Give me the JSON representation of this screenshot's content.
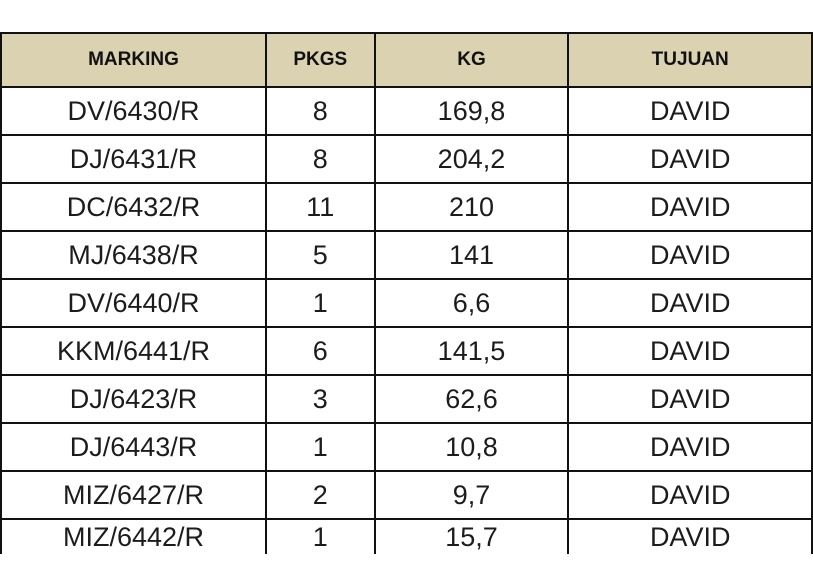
{
  "table": {
    "headers": [
      "MARKING",
      "PKGS",
      "KG",
      "TUJUAN"
    ],
    "rows": [
      [
        "DV/6430/R",
        "8",
        "169,8",
        "DAVID"
      ],
      [
        "DJ/6431/R",
        "8",
        "204,2",
        "DAVID"
      ],
      [
        "DC/6432/R",
        "11",
        "210",
        "DAVID"
      ],
      [
        "MJ/6438/R",
        "5",
        "141",
        "DAVID"
      ],
      [
        "DV/6440/R",
        "1",
        "6,6",
        "DAVID"
      ],
      [
        "KKM/6441/R",
        "6",
        "141,5",
        "DAVID"
      ],
      [
        "DJ/6423/R",
        "3",
        "62,6",
        "DAVID"
      ],
      [
        "DJ/6443/R",
        "1",
        "10,8",
        "DAVID"
      ],
      [
        "MIZ/6427/R",
        "2",
        "9,7",
        "DAVID"
      ],
      [
        "MIZ/6442/R",
        "1",
        "15,7",
        "DAVID"
      ]
    ]
  },
  "colors": {
    "header_background": "#dbd2b2",
    "grid_lines": "#111111",
    "cell_background": "#ffffff"
  }
}
